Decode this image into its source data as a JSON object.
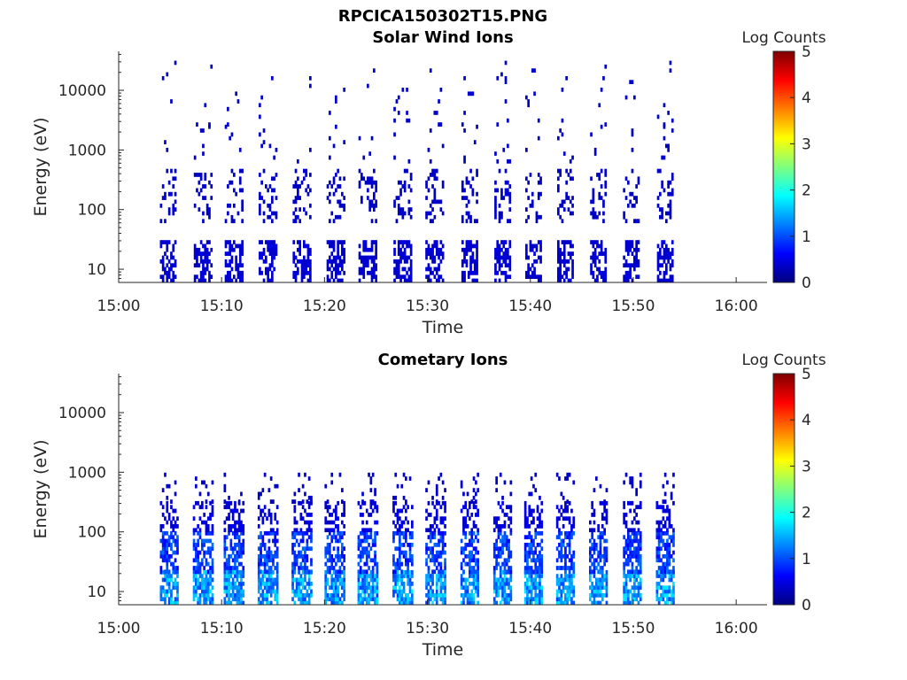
{
  "figure_title": "RPCICA150302T15.PNG",
  "colors": {
    "axis": "#262626",
    "background": "#ffffff",
    "colormap": [
      "#00007f",
      "#0000ff",
      "#007fff",
      "#00ffff",
      "#7fff7f",
      "#ffff00",
      "#ff7f00",
      "#ff0000",
      "#7f0000"
    ]
  },
  "chart_data": [
    {
      "type": "heatmap",
      "title": "Solar Wind Ions",
      "xlabel": "Time",
      "ylabel": "Energy (eV)",
      "colorbar_label": "Log Counts",
      "colorbar_ticks": [
        "0",
        "1",
        "2",
        "3",
        "4",
        "5"
      ],
      "colorbar_range": [
        0,
        5
      ],
      "y_scale": "log",
      "ylim": [
        6,
        45000
      ],
      "xlim": [
        "15:00",
        "16:03"
      ],
      "xticks": [
        "15:00",
        "15:10",
        "15:20",
        "15:30",
        "15:40",
        "15:50",
        "16:00"
      ],
      "yticks": [
        "10",
        "100",
        "1000",
        "10000"
      ],
      "grid": false,
      "data_extent": [
        "15:03",
        "15:54"
      ],
      "sweep_start_minutes": [
        4.0,
        7.3,
        10.3,
        13.6,
        16.9,
        20.2,
        23.3,
        26.7,
        29.8,
        33.3,
        36.5,
        39.5,
        42.6,
        45.8,
        49.0,
        52.3
      ],
      "sweep_duration_minutes": 1.6,
      "bands": [
        {
          "energy_eV": [
            6,
            30
          ],
          "level": [
            0.3,
            0.5
          ],
          "fill": 0.55
        },
        {
          "energy_eV": [
            60,
            450
          ],
          "level": [
            0.3,
            0.4
          ],
          "fill": 0.25
        },
        {
          "energy_eV": [
            600,
            2500
          ],
          "level": [
            0.3,
            0.4
          ],
          "fill": 0.05
        },
        {
          "energy_eV": [
            2500,
            30000
          ],
          "level": [
            0.3,
            0.4
          ],
          "fill": 0.03
        }
      ]
    },
    {
      "type": "heatmap",
      "title": "Cometary Ions",
      "xlabel": "Time",
      "ylabel": "Energy (eV)",
      "colorbar_label": "Log Counts",
      "colorbar_ticks": [
        "0",
        "1",
        "2",
        "3",
        "4",
        "5"
      ],
      "colorbar_range": [
        0,
        5
      ],
      "y_scale": "log",
      "ylim": [
        6,
        45000
      ],
      "xlim": [
        "15:00",
        "16:03"
      ],
      "xticks": [
        "15:00",
        "15:10",
        "15:20",
        "15:30",
        "15:40",
        "15:50",
        "16:00"
      ],
      "yticks": [
        "10",
        "100",
        "1000",
        "10000"
      ],
      "grid": false,
      "data_extent": [
        "15:04",
        "15:54"
      ],
      "sweep_start_minutes": [
        4.0,
        7.2,
        10.2,
        13.5,
        16.8,
        20.0,
        23.2,
        26.6,
        29.8,
        33.2,
        36.4,
        39.4,
        42.5,
        45.7,
        49.0,
        52.2
      ],
      "sweep_duration_minutes": 1.8,
      "bands": [
        {
          "energy_eV": [
            6,
            20
          ],
          "level": [
            0.9,
            1.8
          ],
          "fill": 0.75
        },
        {
          "energy_eV": [
            20,
            100
          ],
          "level": [
            0.6,
            1.2
          ],
          "fill": 0.6
        },
        {
          "energy_eV": [
            100,
            300
          ],
          "level": [
            0.3,
            0.6
          ],
          "fill": 0.4
        },
        {
          "energy_eV": [
            300,
            900
          ],
          "level": [
            0.3,
            0.4
          ],
          "fill": 0.12
        }
      ]
    }
  ]
}
